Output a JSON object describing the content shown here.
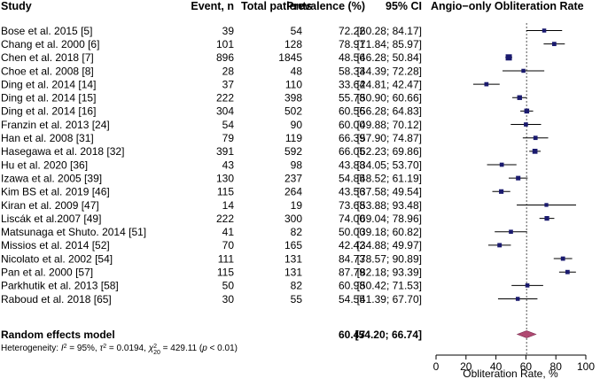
{
  "chart_data": {
    "type": "forest",
    "headers": {
      "study": "Study",
      "events": "Event, n",
      "total": "Total patients",
      "prevalence": "Prevalence (%)",
      "ci": "95% CI",
      "plot_title": "Angio−only Obliteration Rate"
    },
    "studies": [
      {
        "name": "Bose et al. 2015 [5]",
        "events": "39",
        "total": "54",
        "prevalence": "72.22",
        "ci_text": "[60.28; 84.17]",
        "est": 72.22,
        "lo": 60.28,
        "hi": 84.17
      },
      {
        "name": "Chang et al. 2000 [6]",
        "events": "101",
        "total": "128",
        "prevalence": "78.91",
        "ci_text": "[71.84; 85.97]",
        "est": 78.91,
        "lo": 71.84,
        "hi": 85.97
      },
      {
        "name": "Chen et al. 2018 [7]",
        "events": "896",
        "total": "1845",
        "prevalence": "48.56",
        "ci_text": "[46.28; 50.84]",
        "est": 48.56,
        "lo": 46.28,
        "hi": 50.84
      },
      {
        "name": "Choe et al. 2008 [8]",
        "events": "28",
        "total": "48",
        "prevalence": "58.33",
        "ci_text": "[44.39; 72.28]",
        "est": 58.33,
        "lo": 44.39,
        "hi": 72.28
      },
      {
        "name": "Ding et al. 2014 [14]",
        "events": "37",
        "total": "110",
        "prevalence": "33.64",
        "ci_text": "[24.81; 42.47]",
        "est": 33.64,
        "lo": 24.81,
        "hi": 42.47
      },
      {
        "name": "Ding et al. 2014 [15]",
        "events": "222",
        "total": "398",
        "prevalence": "55.78",
        "ci_text": "[50.90; 60.66]",
        "est": 55.78,
        "lo": 50.9,
        "hi": 60.66
      },
      {
        "name": "Ding et al. 2014 [16]",
        "events": "304",
        "total": "502",
        "prevalence": "60.56",
        "ci_text": "[56.28; 64.83]",
        "est": 60.56,
        "lo": 56.28,
        "hi": 64.83
      },
      {
        "name": "Franzin et al. 2013 [24]",
        "events": "54",
        "total": "90",
        "prevalence": "60.00",
        "ci_text": "[49.88; 70.12]",
        "est": 60.0,
        "lo": 49.88,
        "hi": 70.12
      },
      {
        "name": "Han et al. 2008 [31]",
        "events": "79",
        "total": "119",
        "prevalence": "66.39",
        "ci_text": "[57.90; 74.87]",
        "est": 66.39,
        "lo": 57.9,
        "hi": 74.87
      },
      {
        "name": "Hasegawa et al. 2018 [32]",
        "events": "391",
        "total": "592",
        "prevalence": "66.05",
        "ci_text": "[62.23; 69.86]",
        "est": 66.05,
        "lo": 62.23,
        "hi": 69.86
      },
      {
        "name": "Hu et al. 2020 [36]",
        "events": "43",
        "total": "98",
        "prevalence": "43.88",
        "ci_text": "[34.05; 53.70]",
        "est": 43.88,
        "lo": 34.05,
        "hi": 53.7
      },
      {
        "name": "Izawa et al. 2005 [39]",
        "events": "130",
        "total": "237",
        "prevalence": "54.85",
        "ci_text": "[48.52; 61.19]",
        "est": 54.85,
        "lo": 48.52,
        "hi": 61.19
      },
      {
        "name": "Kim BS et al. 2019 [46]",
        "events": "115",
        "total": "264",
        "prevalence": "43.56",
        "ci_text": "[37.58; 49.54]",
        "est": 43.56,
        "lo": 37.58,
        "hi": 49.54
      },
      {
        "name": "Kiran et al. 2009 [47]",
        "events": "14",
        "total": "19",
        "prevalence": "73.68",
        "ci_text": "[53.88; 93.48]",
        "est": 73.68,
        "lo": 53.88,
        "hi": 93.48
      },
      {
        "name": "Liscák et al.2007 [49]",
        "events": "222",
        "total": "300",
        "prevalence": "74.00",
        "ci_text": "[69.04; 78.96]",
        "est": 74.0,
        "lo": 69.04,
        "hi": 78.96
      },
      {
        "name": "Matsunaga et Shuto. 2014 [51]",
        "events": "41",
        "total": "82",
        "prevalence": "50.00",
        "ci_text": "[39.18; 60.82]",
        "est": 50.0,
        "lo": 39.18,
        "hi": 60.82
      },
      {
        "name": "Missios et al. 2014 [52]",
        "events": "70",
        "total": "165",
        "prevalence": "42.42",
        "ci_text": "[34.88; 49.97]",
        "est": 42.42,
        "lo": 34.88,
        "hi": 49.97
      },
      {
        "name": "Nicolato et al. 2002 [54]",
        "events": "111",
        "total": "131",
        "prevalence": "84.73",
        "ci_text": "[78.57; 90.89]",
        "est": 84.73,
        "lo": 78.57,
        "hi": 90.89
      },
      {
        "name": "Pan et al. 2000 [57]",
        "events": "115",
        "total": "131",
        "prevalence": "87.79",
        "ci_text": "[82.18; 93.39]",
        "est": 87.79,
        "lo": 82.18,
        "hi": 93.39
      },
      {
        "name": "Parkhutik et al. 2013 [58]",
        "events": "50",
        "total": "82",
        "prevalence": "60.98",
        "ci_text": "[50.42; 71.53]",
        "est": 60.98,
        "lo": 50.42,
        "hi": 71.53
      },
      {
        "name": "Raboud et al. 2018 [65]",
        "events": "30",
        "total": "55",
        "prevalence": "54.55",
        "ci_text": "[41.39; 67.70]",
        "est": 54.55,
        "lo": 41.39,
        "hi": 67.7
      }
    ],
    "summary": {
      "name": "Random effects model",
      "prevalence": "60.47",
      "ci_text": "[54.20; 66.74]",
      "est": 60.47,
      "lo": 54.2,
      "hi": 66.74
    },
    "heterogeneity": {
      "prefix": "Heterogeneity: ",
      "i2_label": "I",
      "i2_value": " = 95%, ",
      "tau_label": "τ",
      "tau_value": " = 0.0194, ",
      "chi_label": "χ",
      "chi_sub": "20",
      "chi_value": " = 429.11 (",
      "p_label": "p",
      "p_value": " < 0.01)"
    },
    "x_axis": {
      "label": "Obliteration Rate, %",
      "range": [
        0,
        100
      ],
      "ticks": [
        "0",
        "20",
        "40",
        "60",
        "80",
        "100"
      ]
    },
    "colors": {
      "marker": "#1a1a6e",
      "diamond": "#b04a72",
      "text": "#000000"
    }
  }
}
